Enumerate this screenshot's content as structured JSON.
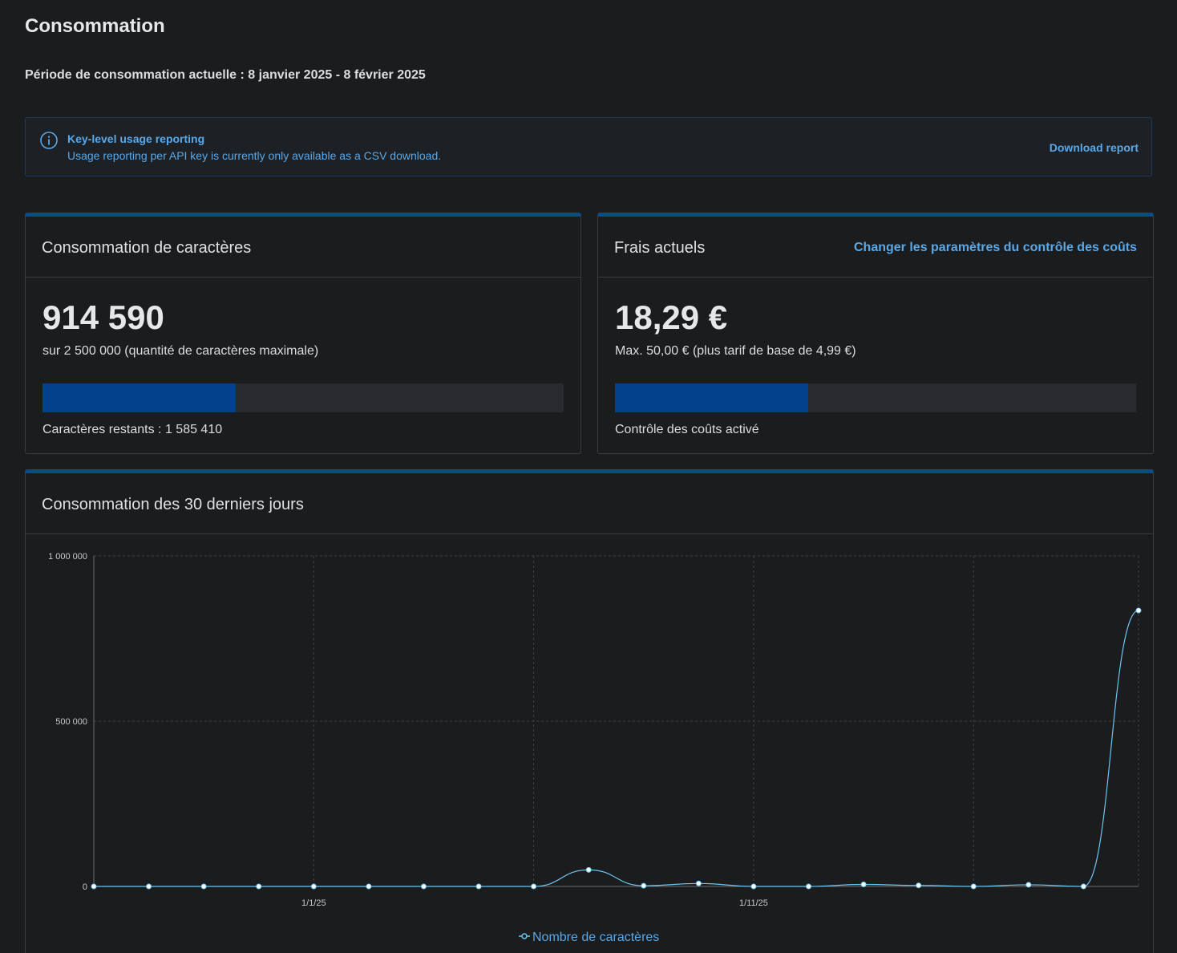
{
  "page": {
    "title": "Consommation",
    "period": "Période de consommation actuelle : 8 janvier 2025 - 8 février 2025"
  },
  "info_banner": {
    "icon": "info-icon",
    "title": "Key-level usage reporting",
    "text": "Usage reporting per API key is currently only available as a CSV download.",
    "action_label": "Download report"
  },
  "characters_card": {
    "title": "Consommation de caractères",
    "value": "914 590",
    "subtitle": "sur 2 500 000 (quantité de caractères maximale)",
    "progress_fraction": 0.37,
    "footer": "Caractères restants : 1 585 410"
  },
  "costs_card": {
    "title": "Frais actuels",
    "link_label": "Changer les paramètres du contrôle des coûts",
    "value": "18,29 €",
    "subtitle": "Max. 50,00 € (plus tarif de base de 4,99 €)",
    "progress_fraction": 0.37,
    "footer": "Contrôle des coûts activé"
  },
  "usage_card": {
    "title": "Consommation des 30 derniers jours"
  },
  "colors": {
    "accent": "#0e4a86",
    "progress": "#02428a",
    "link": "#5aa8e8",
    "series": "#6cc4f2"
  },
  "chart_data": {
    "type": "line",
    "x_tick_labels": [
      "1/1/25",
      "1/11/25"
    ],
    "y_tick_labels": [
      "0",
      "500 000",
      "1 000 000"
    ],
    "ylim": [
      0,
      1000000
    ],
    "grid": true,
    "legend_position": "bottom-center",
    "series": [
      {
        "name": "Nombre de caractères",
        "values": [
          0,
          0,
          0,
          0,
          0,
          0,
          0,
          0,
          0,
          50000,
          2000,
          9000,
          0,
          0,
          6000,
          3000,
          0,
          5000,
          0,
          835000
        ]
      }
    ]
  }
}
